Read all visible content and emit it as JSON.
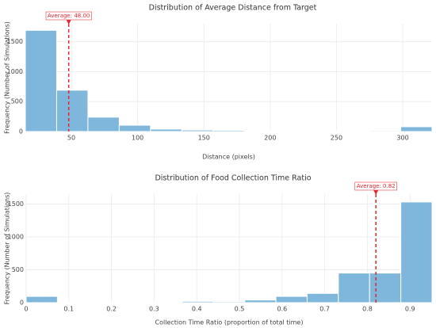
{
  "chart_data": [
    {
      "type": "histogram",
      "title": "Distribution of Average Distance from Target",
      "x_label": "Distance (pixels)",
      "y_label": "Frequency (Number of Simulations)",
      "bins": [
        15.3,
        38.9,
        62.5,
        86.1,
        109.7,
        133.3,
        156.9,
        180.5,
        204.1,
        227.7,
        251.3,
        274.9,
        298.5,
        322.1
      ],
      "values": [
        1690,
        690,
        240,
        105,
        40,
        25,
        20,
        10,
        12,
        8,
        8,
        15,
        80
      ],
      "color": "#7fb6dc",
      "xlim": [
        15.3,
        322.1
      ],
      "xticks": [
        50,
        100,
        150,
        200,
        250,
        300
      ],
      "ylim": [
        0,
        1800
      ],
      "yticks": [
        0,
        500,
        1000,
        1500
      ],
      "grid": true,
      "mean": {
        "value": 48,
        "label": "Average: 48.00"
      },
      "mean_color": "#e0282e"
    },
    {
      "type": "histogram",
      "title": "Distribution of Food Collection Time Ratio",
      "x_label": "Collection Time Ratio (proportion of total time)",
      "y_label": "Frequency (Number of Simulations)",
      "bins": [
        0,
        0.0732,
        0.1464,
        0.2196,
        0.2928,
        0.366,
        0.4392,
        0.5124,
        0.5856,
        0.6588,
        0.732,
        0.8052,
        0.8784,
        0.9516
      ],
      "values": [
        95,
        5,
        5,
        10,
        10,
        20,
        15,
        40,
        95,
        140,
        450,
        450,
        1530
      ],
      "color": "#7fb6dc",
      "xlim": [
        0,
        0.9516
      ],
      "xticks": [
        0,
        0.1,
        0.2,
        0.3,
        0.4,
        0.5,
        0.6,
        0.7,
        0.8,
        0.9
      ],
      "ylim": [
        0,
        1650
      ],
      "yticks": [
        0,
        500,
        1000,
        1500
      ],
      "grid": true,
      "mean": {
        "value": 0.82,
        "label": "Average: 0.82"
      },
      "mean_color": "#e0282e"
    }
  ]
}
